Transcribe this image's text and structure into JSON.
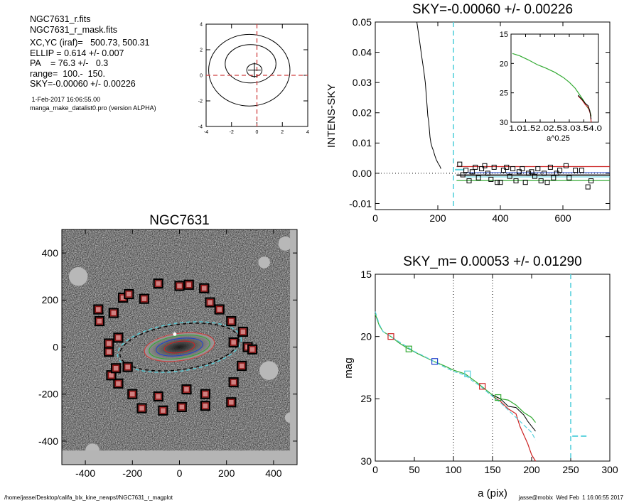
{
  "header": {
    "file1": "NGC7631_r.fits",
    "file2": "NGC7631_r_mask.fits",
    "xcyc": "XC,YC (iraf)=   500.73, 500.31",
    "ellip": "ELLIP = 0.614 +/- 0.007",
    "pa": "PA    = 76.3 +/-   0.3",
    "range": "range=  100.-  150.",
    "sky": "SKY=-0.00060 +/- 0.00226",
    "date": " 1-Feb-2017 16:06:55.00",
    "program": "manga_make_datalist0.pro (version ALPHA)"
  },
  "footer": {
    "path": "/home/jasse/Desktop/califa_blx_kine_newpsf/NGC7631_r_magplot",
    "stamp": "jasse@mobix  Wed Feb  1 16:06:55 2017"
  },
  "colors": {
    "cyan": "#56d0dc",
    "red": "#cc2222",
    "green": "#33aa33",
    "blue": "#2244cc",
    "black": "#000000",
    "dashred": "#d04040",
    "marker": "#8b1010"
  },
  "chart_data": [
    {
      "id": "centroid",
      "type": "line",
      "title": "",
      "xlabel": "",
      "ylabel": "",
      "xlim": [
        -4,
        4
      ],
      "ylim": [
        -4,
        4
      ],
      "xticks": [
        "-4",
        "-2",
        "0",
        "2",
        "4"
      ],
      "yticks": [
        "-4",
        "-2",
        "0",
        "2",
        "4"
      ],
      "contours": [
        {
          "cx": -0.2,
          "cy": 0.4,
          "rx": 0.6,
          "ry": 0.5
        },
        {
          "cx": -0.5,
          "cy": 0.9,
          "rx": 2.0,
          "ry": 1.5
        },
        {
          "cx": -0.6,
          "cy": 0.4,
          "rx": 3.2,
          "ry": 2.8
        }
      ]
    },
    {
      "id": "sky",
      "type": "line",
      "title": "SKY=-0.00060 +/- 0.00226",
      "xlabel": "",
      "ylabel": "INTENS-SKY",
      "xlim": [
        0,
        750
      ],
      "ylim": [
        -0.012,
        0.05
      ],
      "xticks": [
        "0",
        "200",
        "400",
        "600"
      ],
      "yticks": [
        "-0.01",
        "0.00",
        "0.01",
        "0.02",
        "0.03",
        "0.04",
        "0.05"
      ],
      "profile": [
        [
          133,
          0.05
        ],
        [
          140,
          0.045
        ],
        [
          148,
          0.039
        ],
        [
          155,
          0.034
        ],
        [
          160,
          0.03
        ],
        [
          163,
          0.026
        ],
        [
          166,
          0.022
        ],
        [
          168,
          0.019
        ],
        [
          171,
          0.017
        ],
        [
          175,
          0.012
        ],
        [
          178,
          0.01
        ],
        [
          182,
          0.0085
        ],
        [
          186,
          0.0075
        ],
        [
          190,
          0.006
        ],
        [
          195,
          0.0045
        ],
        [
          200,
          0.0035
        ],
        [
          206,
          0.0025
        ],
        [
          210,
          0.0015
        ]
      ],
      "sky_boundary": 250,
      "sky_level": -0.0006,
      "sky_upper": 0.0022,
      "sky_lower": -0.0024,
      "points": [
        [
          270,
          0.003
        ],
        [
          280,
          -0.0005
        ],
        [
          290,
          0.001
        ],
        [
          300,
          -0.0025
        ],
        [
          310,
          0.0005
        ],
        [
          320,
          0.002
        ],
        [
          330,
          -0.0015
        ],
        [
          340,
          0.0015
        ],
        [
          350,
          0.0025
        ],
        [
          360,
          0.0
        ],
        [
          370,
          -0.002
        ],
        [
          380,
          0.002
        ],
        [
          390,
          -0.003
        ],
        [
          400,
          -0.003
        ],
        [
          410,
          0.001
        ],
        [
          420,
          0.002
        ],
        [
          430,
          -0.001
        ],
        [
          440,
          0.0015
        ],
        [
          450,
          -0.0025
        ],
        [
          460,
          0.0005
        ],
        [
          470,
          0.0015
        ],
        [
          480,
          -0.003
        ],
        [
          490,
          0.0
        ],
        [
          500,
          0.0005
        ],
        [
          510,
          -0.001
        ],
        [
          520,
          0.0015
        ],
        [
          530,
          -0.0025
        ],
        [
          540,
          0.0
        ],
        [
          550,
          -0.003
        ],
        [
          560,
          0.002
        ],
        [
          570,
          -0.0015
        ],
        [
          580,
          0.0
        ],
        [
          590,
          0.001
        ],
        [
          610,
          0.0025
        ],
        [
          620,
          -0.0015
        ],
        [
          640,
          0.001
        ],
        [
          660,
          0.001
        ],
        [
          680,
          -0.0045
        ],
        [
          690,
          -0.0025
        ]
      ],
      "inset": {
        "xlabel": "a^0.25",
        "xlim": [
          1.0,
          4.0
        ],
        "ylim": [
          15,
          30
        ],
        "xticks": [
          "1.0",
          "1.5",
          "2.0",
          "2.5",
          "3.0",
          "3.5",
          "4.0"
        ],
        "yticks": [
          "15",
          "20",
          "25",
          "30"
        ],
        "green": [
          [
            1.05,
            18.3
          ],
          [
            1.3,
            18.7
          ],
          [
            1.6,
            19.4
          ],
          [
            1.9,
            20.2
          ],
          [
            2.2,
            20.8
          ],
          [
            2.5,
            21.5
          ],
          [
            2.8,
            22.4
          ],
          [
            3.0,
            23.2
          ],
          [
            3.2,
            24.2
          ],
          [
            3.35,
            25.3
          ],
          [
            3.5,
            26.4
          ],
          [
            3.6,
            27.3
          ],
          [
            3.7,
            28.0
          ],
          [
            3.75,
            29.0
          ]
        ],
        "red": [
          [
            3.3,
            25.5
          ],
          [
            3.45,
            26.3
          ],
          [
            3.55,
            27.0
          ],
          [
            3.65,
            27.5
          ],
          [
            3.72,
            28.5
          ],
          [
            3.75,
            30.0
          ]
        ],
        "black": [
          [
            3.3,
            25.4
          ],
          [
            3.45,
            26.2
          ],
          [
            3.55,
            26.8
          ],
          [
            3.65,
            27.2
          ],
          [
            3.7,
            28.0
          ],
          [
            3.75,
            29.5
          ]
        ]
      }
    },
    {
      "id": "image",
      "type": "scatter",
      "title": "NGC7631",
      "xlabel": "",
      "ylabel": "",
      "xlim": [
        -500,
        500
      ],
      "ylim": [
        -500,
        500
      ],
      "xticks": [
        "-400",
        "-200",
        "0",
        "200",
        "400"
      ],
      "yticks": [
        "-400",
        "-200",
        "0",
        "200",
        "400"
      ],
      "ellipses": [
        {
          "color": "cyan",
          "a": 265,
          "b": 102,
          "dash": true
        },
        {
          "color": "black",
          "a": 255,
          "b": 96,
          "dash": true
        },
        {
          "color": "dashred",
          "a": 150,
          "b": 58,
          "dash": false
        },
        {
          "color": "green",
          "a": 130,
          "b": 48,
          "dash": false
        },
        {
          "color": "blue",
          "a": 100,
          "b": 36,
          "dash": false
        },
        {
          "color": "red",
          "a": 65,
          "b": 24,
          "dash": false
        }
      ],
      "pa_deg": -76.3,
      "masked_stars": [
        [
          -345,
          160
        ],
        [
          -340,
          110
        ],
        [
          -280,
          145
        ],
        [
          -240,
          210
        ],
        [
          -215,
          225
        ],
        [
          -150,
          205
        ],
        [
          -90,
          270
        ],
        [
          0,
          260
        ],
        [
          40,
          265
        ],
        [
          105,
          250
        ],
        [
          130,
          190
        ],
        [
          170,
          160
        ],
        [
          220,
          110
        ],
        [
          270,
          65
        ],
        [
          290,
          0
        ],
        [
          265,
          -80
        ],
        [
          230,
          -150
        ],
        [
          110,
          -200
        ],
        [
          30,
          -180
        ],
        [
          -90,
          -210
        ],
        [
          -260,
          -155
        ],
        [
          -290,
          -120
        ],
        [
          -270,
          -90
        ],
        [
          -220,
          -85
        ],
        [
          -300,
          -20
        ],
        [
          -300,
          15
        ],
        [
          -260,
          40
        ],
        [
          -200,
          -200
        ],
        [
          -160,
          -260
        ],
        [
          -70,
          -270
        ],
        [
          10,
          -255
        ],
        [
          110,
          -250
        ],
        [
          220,
          -235
        ],
        [
          310,
          -10
        ],
        [
          230,
          20
        ],
        [
          40,
          -30
        ]
      ]
    },
    {
      "id": "magprofile",
      "type": "line",
      "title": "SKY_m=  0.00053 +/- 0.01290",
      "xlabel": "a (pix)",
      "ylabel": "mag",
      "xlim": [
        0,
        300
      ],
      "ylim": [
        15,
        30
      ],
      "xticks": [
        "0",
        "50",
        "100",
        "150",
        "200",
        "250",
        "300"
      ],
      "yticks": [
        "15",
        "20",
        "25",
        "30"
      ],
      "fit_range": [
        100,
        150
      ],
      "sky_boundary": 250,
      "sky_mag": 28.0,
      "cyan": [
        [
          0,
          18.0
        ],
        [
          5,
          19.0
        ],
        [
          10,
          19.6
        ],
        [
          20,
          20.0
        ],
        [
          30,
          20.4
        ],
        [
          40,
          20.8
        ],
        [
          50,
          21.2
        ],
        [
          60,
          21.5
        ],
        [
          75,
          22.0
        ],
        [
          90,
          22.5
        ],
        [
          100,
          22.8
        ],
        [
          115,
          23.1
        ],
        [
          125,
          23.6
        ],
        [
          135,
          24.0
        ],
        [
          140,
          24.3
        ],
        [
          150,
          24.8
        ],
        [
          160,
          25.3
        ],
        [
          170,
          25.9
        ],
        [
          180,
          26.5
        ],
        [
          190,
          27.1
        ],
        [
          200,
          27.7
        ],
        [
          205,
          28.3
        ]
      ],
      "green": [
        [
          0,
          18.2
        ],
        [
          5,
          19.1
        ],
        [
          10,
          19.6
        ],
        [
          20,
          20.0
        ],
        [
          30,
          20.5
        ],
        [
          40,
          20.9
        ],
        [
          55,
          21.4
        ],
        [
          65,
          21.7
        ],
        [
          75,
          22.0
        ],
        [
          90,
          22.4
        ],
        [
          100,
          22.7
        ],
        [
          115,
          23.0
        ],
        [
          130,
          23.7
        ],
        [
          140,
          24.2
        ],
        [
          150,
          24.7
        ],
        [
          160,
          25.0
        ],
        [
          170,
          25.1
        ],
        [
          180,
          25.5
        ],
        [
          190,
          26.1
        ],
        [
          200,
          26.5
        ],
        [
          205,
          26.9
        ]
      ],
      "red": [
        [
          150,
          24.8
        ],
        [
          160,
          25.2
        ],
        [
          170,
          25.8
        ],
        [
          180,
          26.2
        ],
        [
          185,
          27.2
        ],
        [
          190,
          27.9
        ],
        [
          195,
          28.6
        ],
        [
          200,
          29.5
        ],
        [
          205,
          30.0
        ]
      ],
      "black": [
        [
          150,
          24.7
        ],
        [
          160,
          25.0
        ],
        [
          170,
          25.6
        ],
        [
          180,
          25.7
        ],
        [
          185,
          26.0
        ],
        [
          190,
          26.3
        ],
        [
          195,
          26.8
        ],
        [
          200,
          27.2
        ],
        [
          205,
          27.6
        ]
      ],
      "markers": [
        {
          "x": 20,
          "y": 20.0,
          "color": "red"
        },
        {
          "x": 43,
          "y": 21.0,
          "color": "green"
        },
        {
          "x": 76,
          "y": 22.0,
          "color": "blue"
        },
        {
          "x": 118,
          "y": 23.0,
          "color": "cyan"
        },
        {
          "x": 137,
          "y": 24.0,
          "color": "red"
        },
        {
          "x": 157,
          "y": 24.9,
          "color": "green"
        }
      ]
    }
  ]
}
